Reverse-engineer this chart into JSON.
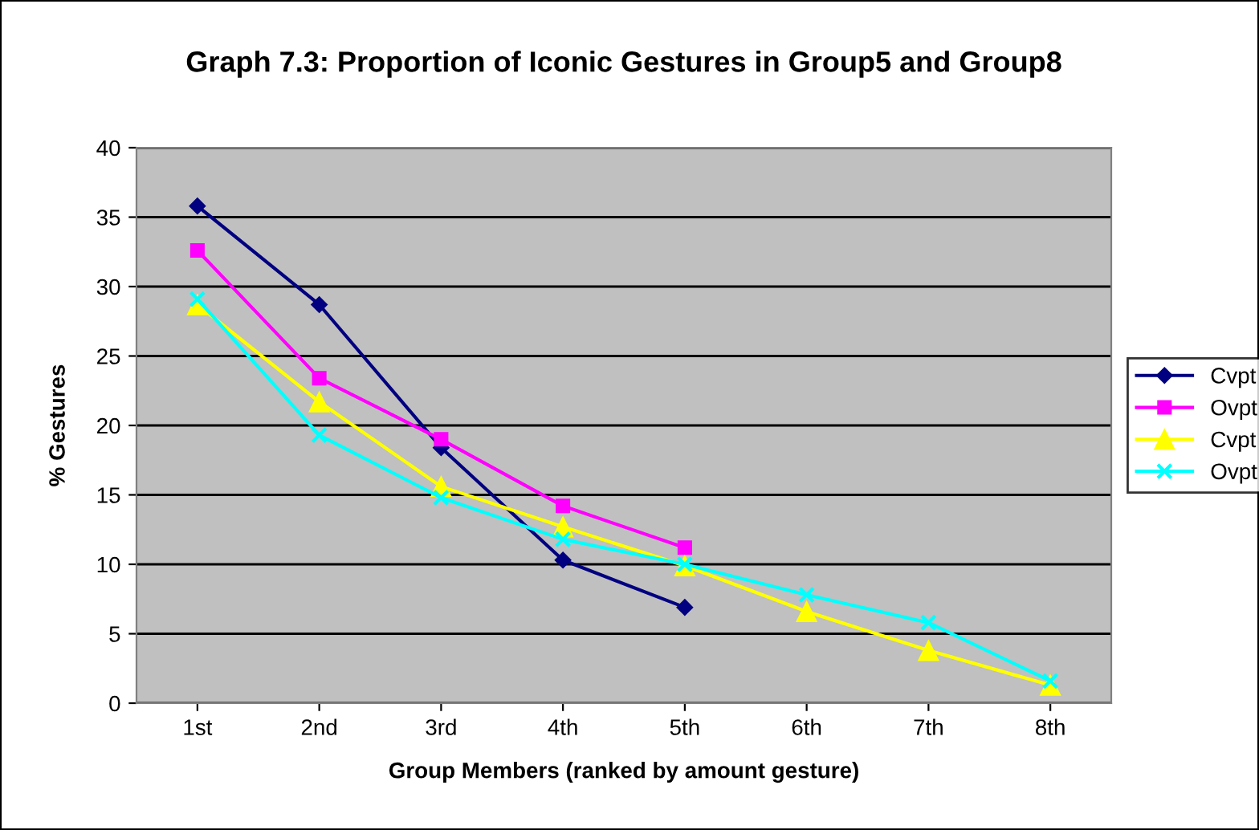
{
  "chart_data": {
    "type": "line",
    "title": "Graph 7.3: Proportion of Iconic Gestures in Group5 and Group8",
    "xlabel": "Group Members (ranked by amount gesture)",
    "ylabel": "% Gestures",
    "categories": [
      "1st",
      "2nd",
      "3rd",
      "4th",
      "5th",
      "6th",
      "7th",
      "8th"
    ],
    "series": [
      {
        "name": "Cvpt",
        "color": "#000080",
        "marker": "diamond",
        "values": [
          35.8,
          28.7,
          18.4,
          10.3,
          6.9,
          null,
          null,
          null
        ]
      },
      {
        "name": "Ovpt",
        "color": "#ff00ff",
        "marker": "square",
        "values": [
          32.6,
          23.4,
          19.0,
          14.2,
          11.2,
          null,
          null,
          null
        ]
      },
      {
        "name": "Cvpt",
        "color": "#ffff00",
        "marker": "triangle",
        "values": [
          28.7,
          21.7,
          15.6,
          12.7,
          9.9,
          6.6,
          3.8,
          1.3
        ]
      },
      {
        "name": "Ovpt",
        "color": "#00ffff",
        "marker": "cross",
        "values": [
          29.1,
          19.3,
          14.8,
          11.8,
          10.0,
          7.8,
          5.8,
          1.6
        ]
      }
    ],
    "ylim": [
      0,
      40
    ],
    "yticks": [
      0,
      5,
      10,
      15,
      20,
      25,
      30,
      35,
      40
    ],
    "grid": "y",
    "legend": "right"
  }
}
